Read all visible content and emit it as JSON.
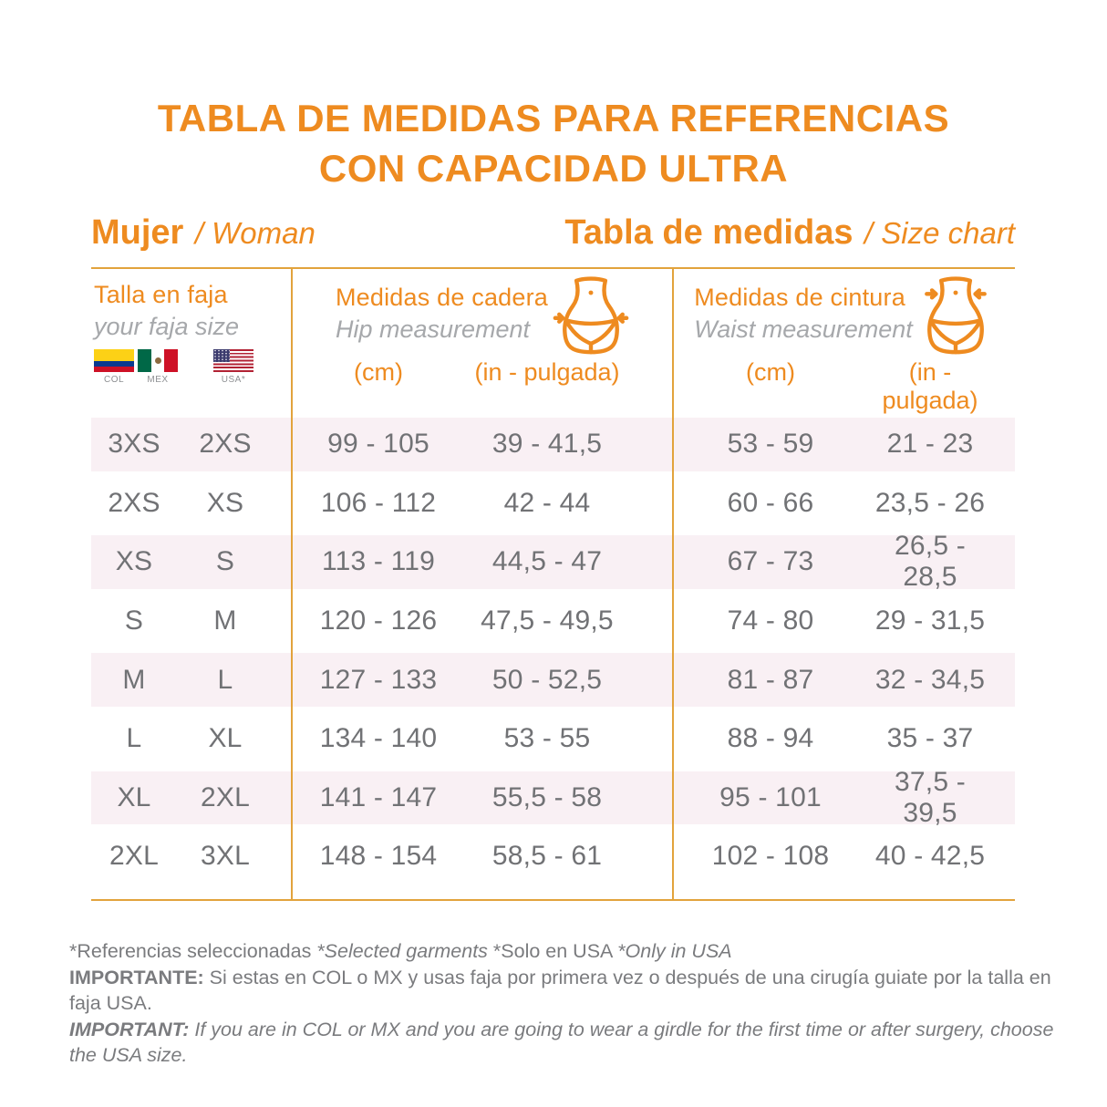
{
  "title": {
    "line1": "TABLA DE MEDIDAS PARA REFERENCIAS",
    "line2": "CON CAPACIDAD ULTRA"
  },
  "section_headers": {
    "left": {
      "primary": "Mujer",
      "secondary": "/ Woman"
    },
    "right": {
      "primary": "Tabla de medidas",
      "secondary": "/ Size chart"
    }
  },
  "columns": {
    "size": {
      "title": "Talla en faja",
      "subtitle": "your faja size"
    },
    "hip": {
      "title": "Medidas de cadera",
      "subtitle": "Hip measurement",
      "unit_cm": "(cm)",
      "unit_in": "(in - pulgada)"
    },
    "waist": {
      "title": "Medidas de cintura",
      "subtitle": "Waist measurement",
      "unit_cm": "(cm)",
      "unit_in": "(in - pulgada)"
    }
  },
  "flags": [
    {
      "icon": "colombia-flag-icon",
      "label": "COL"
    },
    {
      "icon": "mexico-flag-icon",
      "label": "MEX"
    },
    {
      "icon": "usa-flag-icon",
      "label": "USA*"
    }
  ],
  "table": {
    "row_keys": [
      "faja_size",
      "usa_size",
      "hip_cm",
      "hip_in",
      "waist_cm",
      "waist_in"
    ],
    "rows": [
      {
        "faja_size": "3XS",
        "usa_size": "2XS",
        "hip_cm": "99 - 105",
        "hip_in": "39 - 41,5",
        "waist_cm": "53 - 59",
        "waist_in": "21 - 23"
      },
      {
        "faja_size": "2XS",
        "usa_size": "XS",
        "hip_cm": "106 - 112",
        "hip_in": "42 - 44",
        "waist_cm": "60 - 66",
        "waist_in": "23,5 - 26"
      },
      {
        "faja_size": "XS",
        "usa_size": "S",
        "hip_cm": "113 - 119",
        "hip_in": "44,5 - 47",
        "waist_cm": "67 - 73",
        "waist_in": "26,5 - 28,5"
      },
      {
        "faja_size": "S",
        "usa_size": "M",
        "hip_cm": "120 - 126",
        "hip_in": "47,5 - 49,5",
        "waist_cm": "74 - 80",
        "waist_in": "29 - 31,5"
      },
      {
        "faja_size": "M",
        "usa_size": "L",
        "hip_cm": "127 - 133",
        "hip_in": "50 - 52,5",
        "waist_cm": "81 - 87",
        "waist_in": "32 - 34,5"
      },
      {
        "faja_size": "L",
        "usa_size": "XL",
        "hip_cm": "134 - 140",
        "hip_in": "53 - 55",
        "waist_cm": "88 - 94",
        "waist_in": "35 - 37"
      },
      {
        "faja_size": "XL",
        "usa_size": "2XL",
        "hip_cm": "141 - 147",
        "hip_in": "55,5 - 58",
        "waist_cm": "95 - 101",
        "waist_in": "37,5 - 39,5"
      },
      {
        "faja_size": "2XL",
        "usa_size": "3XL",
        "hip_cm": "148 - 154",
        "hip_in": "58,5 - 61",
        "waist_cm": "102 - 108",
        "waist_in": "40 - 42,5"
      }
    ]
  },
  "footnotes": {
    "line1": {
      "seg1": "*Referencias seleccionadas ",
      "seg2": "*Selected garments ",
      "seg3": "*Solo en USA ",
      "seg4": "*Only in USA"
    },
    "line2_label": "IMPORTANTE:",
    "line2_text": " Si estas en COL o MX y usas faja por primera vez o después de una cirugía guiate por la talla en faja USA.",
    "line3_label": "IMPORTANT:",
    "line3_text": " If you are in COL or MX and you are going to wear a girdle for the first time or after surgery, choose the USA size."
  },
  "colors": {
    "orange_text": "#EE8B20",
    "table_lines": "#E2A33C",
    "pink_row": "#F9F0F4",
    "table_text_gray": "#717275",
    "subtitle_gray": "#A6A8AB",
    "footnote_gray": "#7A7B7E"
  }
}
